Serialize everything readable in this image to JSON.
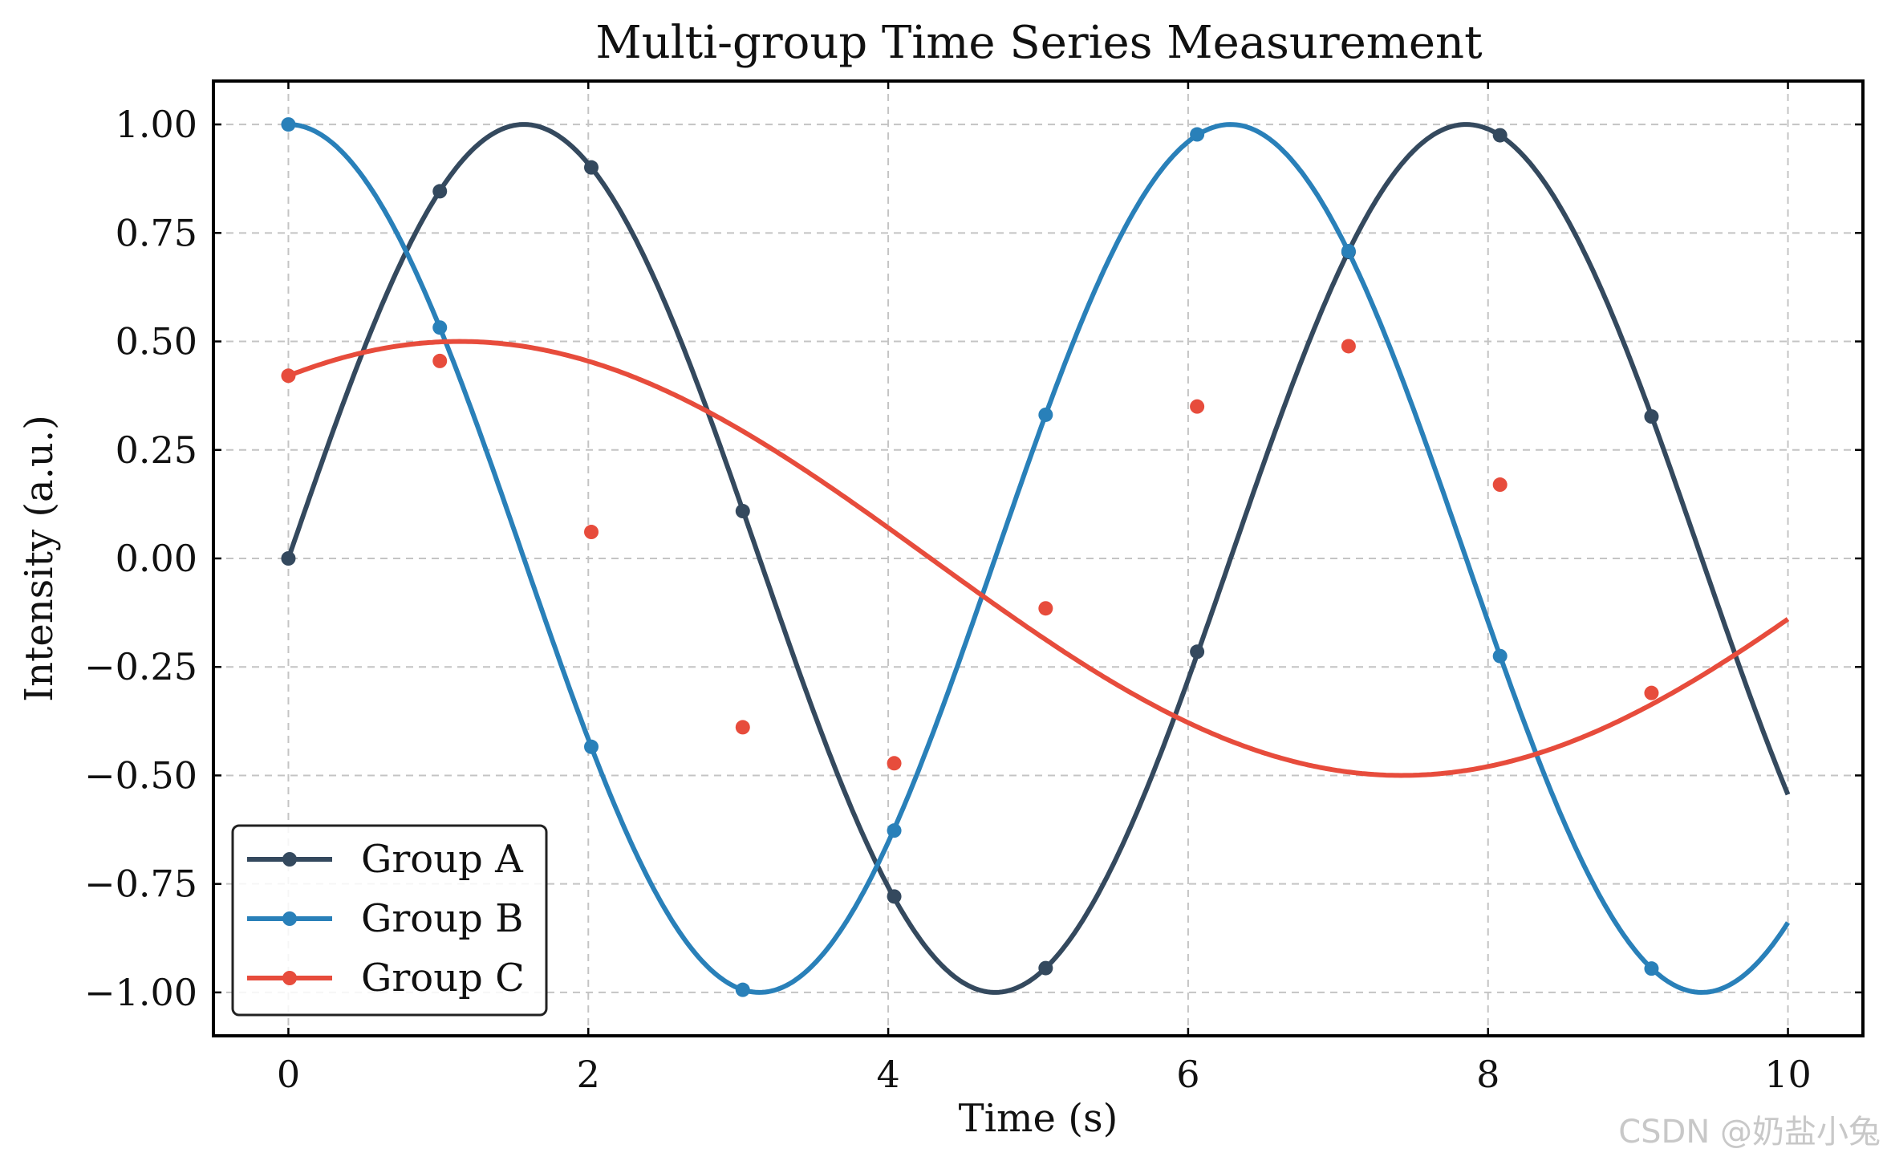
{
  "chart_data": {
    "type": "line",
    "title": "Multi-group Time Series Measurement",
    "xlabel": "Time (s)",
    "ylabel": "Intensity (a.u.)",
    "xlim": [
      -0.5,
      10.5
    ],
    "ylim": [
      -1.1,
      1.1
    ],
    "xticks": [
      0,
      2,
      4,
      6,
      8,
      10
    ],
    "xtick_labels": [
      "0",
      "2",
      "4",
      "6",
      "8",
      "10"
    ],
    "yticks": [
      1.0,
      0.75,
      0.5,
      0.25,
      0.0,
      -0.25,
      -0.5,
      -0.75,
      -1.0
    ],
    "ytick_labels": [
      "1.00",
      "0.75",
      "0.50",
      "0.25",
      "0.00",
      "−0.25",
      "−0.50",
      "−0.75",
      "−1.00"
    ],
    "grid": true,
    "legend_position": "lower-left",
    "series": [
      {
        "name": "Group A",
        "color": "#34495e",
        "curve": {
          "amplitude": 1.0,
          "frequency": 1.0,
          "phase": 0.0,
          "function": "sin"
        },
        "markers": {
          "x": [
            0.0,
            1.01,
            2.02,
            3.03,
            4.04,
            5.05,
            6.06,
            7.07,
            8.08,
            9.09
          ],
          "y": [
            0.0,
            0.846,
            0.901,
            0.109,
            -0.779,
            -0.944,
            -0.215,
            0.706,
            0.975,
            0.327
          ]
        }
      },
      {
        "name": "Group B",
        "color": "#2980b9",
        "curve": {
          "amplitude": 1.0,
          "frequency": 1.0,
          "phase": 0.0,
          "function": "cos"
        },
        "markers": {
          "x": [
            0.0,
            1.01,
            2.02,
            3.03,
            4.04,
            5.05,
            6.06,
            7.07,
            8.08,
            9.09
          ],
          "y": [
            1.0,
            0.532,
            -0.434,
            -0.994,
            -0.627,
            0.331,
            0.977,
            0.708,
            -0.225,
            -0.945
          ]
        }
      },
      {
        "name": "Group C",
        "color": "#e74c3c",
        "curve": {
          "amplitude": 0.5,
          "frequency": 0.5,
          "phase": 1.0,
          "function": "sin"
        },
        "markers": {
          "x": [
            0.0,
            1.01,
            2.02,
            3.03,
            4.04,
            5.05,
            6.06,
            7.07,
            8.08,
            9.09
          ],
          "y": [
            0.421,
            0.455,
            0.061,
            -0.389,
            -0.472,
            -0.115,
            0.35,
            0.489,
            0.17,
            -0.31
          ]
        }
      }
    ]
  },
  "watermark": "CSDN @奶盐小兔"
}
